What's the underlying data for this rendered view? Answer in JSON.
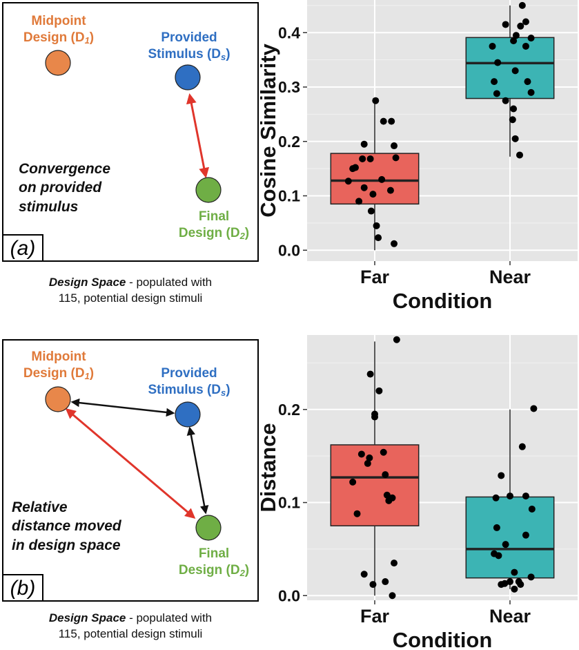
{
  "diagram_a": {
    "midpoint_title": "Midpoint",
    "midpoint_sub": "Design (D",
    "midpoint_index": "1",
    "stimulus_title": "Provided",
    "stimulus_sub": "Stimulus (D",
    "stimulus_index": "s",
    "final_title": "Final",
    "final_sub": "Design (D",
    "final_index": "2",
    "close_paren": ")",
    "statement_lines": [
      "Convergence",
      "on provided",
      "stimulus"
    ],
    "tag": "(a)",
    "caption_bold": "Design Space",
    "caption_rest": " - populated with",
    "caption_line2": "115, potential design stimuli"
  },
  "diagram_b": {
    "midpoint_title": "Midpoint",
    "midpoint_sub": "Design (D",
    "midpoint_index": "1",
    "stimulus_title": "Provided",
    "stimulus_sub": "Stimulus (D",
    "stimulus_index": "s",
    "final_title": "Final",
    "final_sub": "Design (D",
    "final_index": "2",
    "close_paren": ")",
    "statement_lines": [
      "Relative",
      "distance moved",
      "in design space"
    ],
    "tag": "(b)",
    "caption_bold": "Design Space",
    "caption_rest": " - populated with",
    "caption_line2": "115, potential design stimuli"
  },
  "colors": {
    "midpoint": "#e8874a",
    "stimulus": "#2f6fc2",
    "final": "#6fae45",
    "red_arrow": "#e0352b",
    "black_arrow": "#111111",
    "far_box": "#e8645c",
    "near_box": "#3cb4b4",
    "panel_bg": "#e5e5e5"
  },
  "chart_data": [
    {
      "type": "box",
      "xlabel": "Condition",
      "ylabel": "Cosine Similarity",
      "categories": [
        "Far",
        "Near"
      ],
      "ylim": [
        -0.02,
        0.46
      ],
      "yticks": [
        0.0,
        0.1,
        0.2,
        0.3,
        0.4
      ],
      "ytick_labels": [
        "0.0",
        "0.1",
        "0.2",
        "0.3",
        "0.4"
      ],
      "grid": true,
      "boxes": [
        {
          "name": "Far",
          "whisker_low": 0.0,
          "q1": 0.085,
          "median": 0.128,
          "q3": 0.178,
          "whisker_high": 0.275
        },
        {
          "name": "Near",
          "whisker_low": 0.172,
          "q1": 0.279,
          "median": 0.344,
          "q3": 0.391,
          "whisker_high": 0.45
        }
      ],
      "points": [
        {
          "category": "Far",
          "jitter": [
            0.01,
            0.19,
            0.1,
            -0.12,
            0.22,
            0.24,
            -0.14,
            -0.05,
            -0.22,
            -0.25,
            -0.3,
            0.08,
            -0.12,
            0.18,
            -0.02,
            -0.18,
            -0.04,
            0.02,
            0.04,
            0.22
          ],
          "values": [
            0.275,
            0.237,
            0.237,
            0.195,
            0.192,
            0.17,
            0.168,
            0.168,
            0.152,
            0.15,
            0.127,
            0.13,
            0.115,
            0.11,
            0.103,
            0.09,
            0.072,
            0.045,
            0.023,
            0.012
          ]
        },
        {
          "category": "Near",
          "jitter": [
            0.14,
            -0.05,
            0.18,
            0.12,
            0.07,
            0.04,
            0.24,
            -0.2,
            0.18,
            -0.14,
            0.06,
            0.2,
            -0.18,
            0.24,
            -0.15,
            -0.05,
            0.04,
            0.03,
            0.06,
            0.11
          ],
          "values": [
            0.45,
            0.415,
            0.42,
            0.412,
            0.395,
            0.385,
            0.39,
            0.375,
            0.375,
            0.345,
            0.33,
            0.31,
            0.31,
            0.29,
            0.288,
            0.275,
            0.26,
            0.24,
            0.205,
            0.175
          ]
        }
      ]
    },
    {
      "type": "box",
      "xlabel": "Condition",
      "ylabel": "Distance",
      "categories": [
        "Far",
        "Near"
      ],
      "ylim": [
        -0.005,
        0.28
      ],
      "yticks": [
        0.0,
        0.1,
        0.2
      ],
      "ytick_labels": [
        "0.0",
        "0.1",
        "0.2"
      ],
      "grid": true,
      "boxes": [
        {
          "name": "Far",
          "whisker_low": 0.0,
          "q1": 0.075,
          "median": 0.127,
          "q3": 0.162,
          "whisker_high": 0.273
        },
        {
          "name": "Near",
          "whisker_low": 0.007,
          "q1": 0.019,
          "median": 0.05,
          "q3": 0.106,
          "whisker_high": 0.2
        }
      ],
      "points": [
        {
          "category": "Far",
          "jitter": [
            0.25,
            -0.05,
            0.05,
            0.0,
            0.0,
            -0.15,
            0.1,
            -0.08,
            -0.06,
            0.12,
            0.14,
            0.2,
            -0.25,
            0.16,
            -0.2,
            -0.12,
            0.22,
            -0.02,
            0.12,
            0.2
          ],
          "values": [
            0.275,
            0.238,
            0.22,
            0.195,
            0.192,
            0.152,
            0.154,
            0.142,
            0.148,
            0.13,
            0.108,
            0.105,
            0.122,
            0.102,
            0.088,
            0.023,
            0.035,
            0.012,
            0.015,
            0.0
          ]
        },
        {
          "category": "Near",
          "jitter": [
            0.27,
            0.14,
            -0.1,
            0.0,
            -0.16,
            0.25,
            0.18,
            -0.15,
            0.18,
            -0.05,
            -0.18,
            -0.13,
            0.05,
            0.1,
            0.24,
            0.12,
            0.0,
            -0.1,
            -0.06,
            0.05
          ],
          "values": [
            0.201,
            0.16,
            0.129,
            0.107,
            0.105,
            0.093,
            0.107,
            0.073,
            0.065,
            0.055,
            0.045,
            0.043,
            0.025,
            0.015,
            0.02,
            0.012,
            0.015,
            0.012,
            0.013,
            0.007
          ]
        }
      ]
    }
  ]
}
